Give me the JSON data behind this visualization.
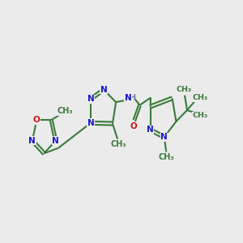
{
  "bg_color": "#ebebeb",
  "bond_color": "#3a7a3a",
  "N_color": "#1515cc",
  "O_color": "#cc1515",
  "H_color": "#708090",
  "lw": 1.5,
  "figsize": [
    3.0,
    3.0
  ],
  "dpi": 100,
  "xlim": [
    0,
    12
  ],
  "ylim": [
    1,
    9
  ]
}
